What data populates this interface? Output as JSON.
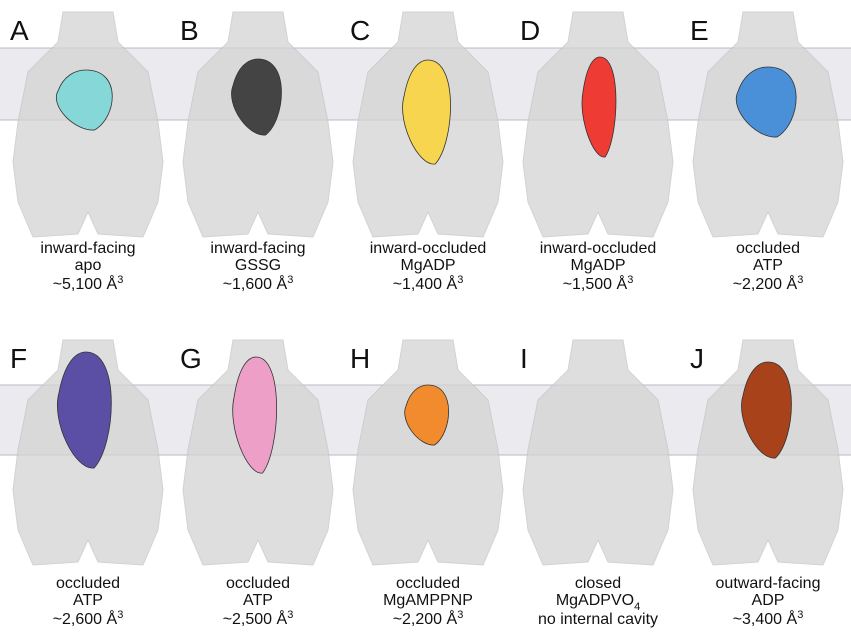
{
  "panels": [
    {
      "letter": "A",
      "state": "inward-facing",
      "ligand": "apo",
      "volume": {
        "text": "~5,100 Å",
        "sup": "3"
      },
      "color": "#86d8d8"
    },
    {
      "letter": "B",
      "state": "inward-facing",
      "ligand": "GSSG",
      "volume": {
        "text": "~1,600 Å",
        "sup": "3"
      },
      "color": "#444444"
    },
    {
      "letter": "C",
      "state": "inward-occluded",
      "ligand": "MgADP",
      "volume": {
        "text": "~1,400 Å",
        "sup": "3"
      },
      "color": "#f7d54e"
    },
    {
      "letter": "D",
      "state": "inward-occluded",
      "ligand": "MgADP",
      "volume": {
        "text": "~1,500 Å",
        "sup": "3"
      },
      "color": "#ee3b34"
    },
    {
      "letter": "E",
      "state": "occluded",
      "ligand": "ATP",
      "volume": {
        "text": "~2,200 Å",
        "sup": "3"
      },
      "color": "#4a90d9"
    },
    {
      "letter": "F",
      "state": "occluded",
      "ligand": "ATP",
      "volume": {
        "text": "~2,600 Å",
        "sup": "3"
      },
      "color": "#5b4fa5"
    },
    {
      "letter": "G",
      "state": "occluded",
      "ligand": "ATP",
      "volume": {
        "text": "~2,500 Å",
        "sup": "3"
      },
      "color": "#ee9fc8"
    },
    {
      "letter": "H",
      "state": "occluded",
      "ligand": "MgAMPPNP",
      "volume": {
        "text": "~2,200 Å",
        "sup": "3"
      },
      "color": "#f28a2e"
    },
    {
      "letter": "I",
      "state": "closed",
      "ligand": {
        "text": "MgADPVO",
        "sub": "4"
      },
      "volume": "no internal cavity"
    },
    {
      "letter": "J",
      "state": "outward-facing",
      "ligand": "ADP",
      "volume": {
        "text": "~3,400 Å",
        "sup": "3"
      },
      "color": "#a8421a"
    }
  ]
}
